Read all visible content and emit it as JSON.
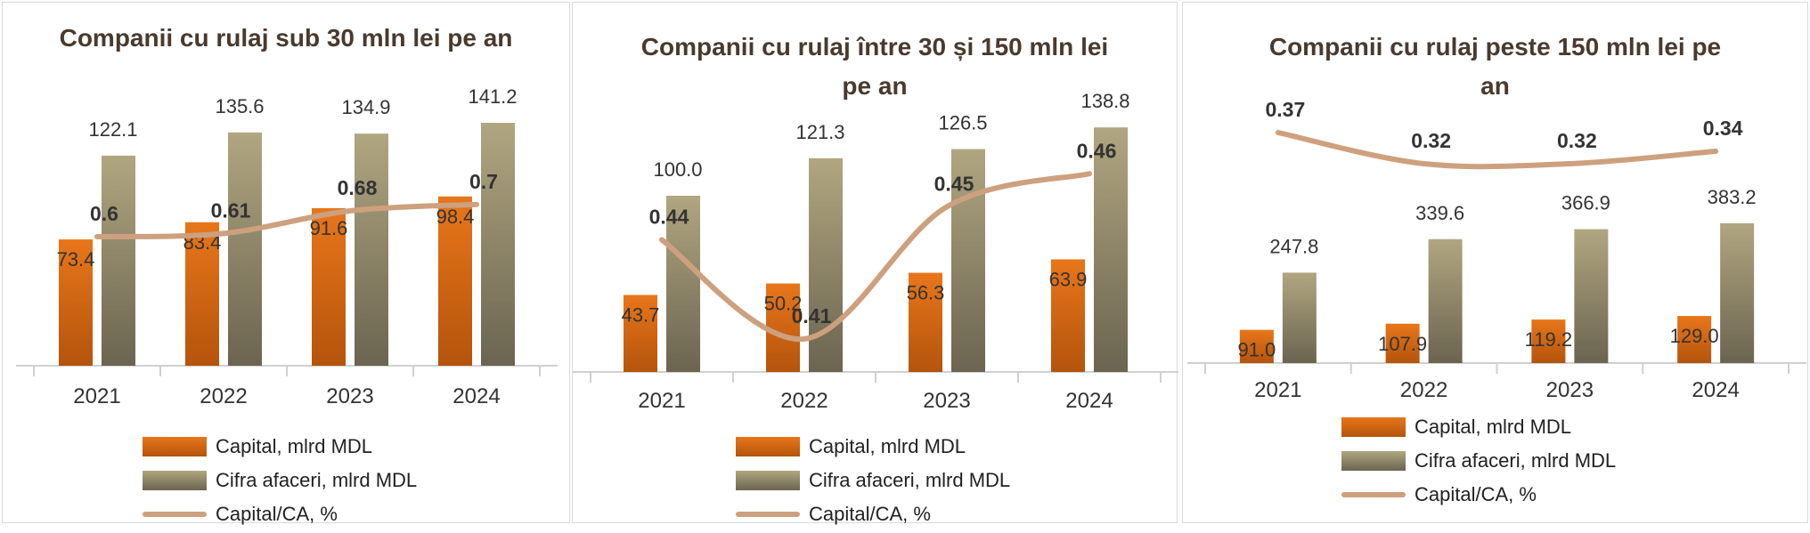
{
  "colors": {
    "capital_top": "#e8761a",
    "capital_bottom": "#b4540c",
    "ca_top": "#b0a680",
    "ca_bottom": "#6b6450",
    "ratio_line": "#cda07e",
    "axis": "#d0d0d0",
    "label_text": "#333333",
    "ratio_label_text": "#333333"
  },
  "legend": {
    "capital": "Capital, mlrd MDL",
    "ca": "Cifra afaceri, mlrd MDL",
    "ratio": "Capital/CA, %"
  },
  "chart_data": [
    {
      "type": "bar",
      "title": "Companii cu rulaj sub 30 mln lei pe an",
      "categories": [
        "2021",
        "2022",
        "2023",
        "2024"
      ],
      "series": [
        {
          "name": "Capital, mlrd MDL",
          "values": [
            73.4,
            83.4,
            91.6,
            98.4
          ]
        },
        {
          "name": "Cifra afaceri, mlrd MDL",
          "values": [
            122.1,
            135.6,
            134.9,
            141.2
          ]
        },
        {
          "name": "Capital/CA, %",
          "values": [
            0.6,
            0.61,
            0.68,
            0.7
          ]
        }
      ],
      "bar_labels": [
        "73.4",
        "83.4",
        "91.6",
        "98.4"
      ],
      "ca_labels": [
        "122.1",
        "135.6",
        "134.9",
        "141.2"
      ],
      "ratio_labels": [
        "0.6",
        "0.61",
        "0.68",
        "0.7"
      ],
      "ylim": [
        0,
        150
      ],
      "ratio_ylim": [
        0.2,
        1.0
      ],
      "legend_position": "bottom"
    },
    {
      "type": "bar",
      "title": "Companii cu rulaj între 30 și 150 mln lei pe an",
      "categories": [
        "2021",
        "2022",
        "2023",
        "2024"
      ],
      "series": [
        {
          "name": "Capital, mlrd MDL",
          "values": [
            43.7,
            50.2,
            56.3,
            63.9
          ]
        },
        {
          "name": "Cifra afaceri, mlrd MDL",
          "values": [
            100.0,
            121.3,
            126.5,
            138.8
          ]
        },
        {
          "name": "Capital/CA, %",
          "values": [
            0.44,
            0.41,
            0.45,
            0.46
          ]
        }
      ],
      "bar_labels": [
        "43.7",
        "50.2",
        "56.3",
        "63.9"
      ],
      "ca_labels": [
        "100.0",
        "121.3",
        "126.5",
        "138.8"
      ],
      "ratio_labels": [
        "0.44",
        "0.41",
        "0.45",
        "0.46"
      ],
      "ylim": [
        0,
        150
      ],
      "ratio_ylim": [
        0.4,
        0.48
      ],
      "legend_position": "bottom"
    },
    {
      "type": "bar",
      "title": "Companii cu rulaj peste 150 mln lei pe an",
      "categories": [
        "2021",
        "2022",
        "2023",
        "2024"
      ],
      "series": [
        {
          "name": "Capital, mlrd MDL",
          "values": [
            91.0,
            107.9,
            119.2,
            129.0
          ]
        },
        {
          "name": "Cifra afaceri, mlrd MDL",
          "values": [
            247.8,
            339.6,
            366.9,
            383.2
          ]
        },
        {
          "name": "Capital/CA, %",
          "values": [
            0.37,
            0.32,
            0.32,
            0.34
          ]
        }
      ],
      "bar_labels": [
        "91.0",
        "107.9",
        "119.2",
        "129.0"
      ],
      "ca_labels": [
        "247.8",
        "339.6",
        "366.9",
        "383.2"
      ],
      "ratio_labels": [
        "0.37",
        "0.32",
        "0.32",
        "0.34"
      ],
      "ylim": [
        0,
        700
      ],
      "ratio_ylim": [
        0.0,
        0.41
      ],
      "legend_position": "bottom"
    }
  ]
}
